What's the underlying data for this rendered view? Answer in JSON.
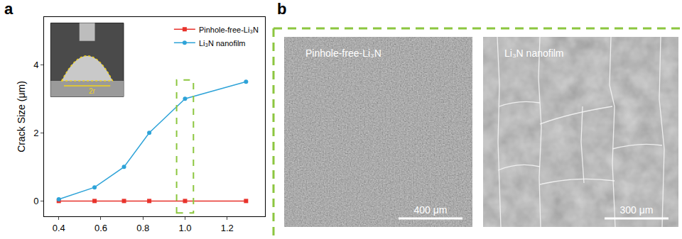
{
  "chart_data": {
    "type": "line",
    "panel_label": "a",
    "y_label": "Crack Size (μm)",
    "x": [
      0.4,
      0.57,
      0.71,
      0.83,
      1.0,
      1.29
    ],
    "series": [
      {
        "name": "Pinhole-free-Li₃N",
        "color": "#e8322b",
        "marker": "square",
        "values": [
          0,
          0,
          0,
          0,
          0,
          0
        ]
      },
      {
        "name": "Li₃N nanofilm",
        "color": "#2ea3d8",
        "marker": "circle",
        "values": [
          0.05,
          0.4,
          1.0,
          2.0,
          3.0,
          3.5
        ]
      }
    ],
    "xlim": [
      0.33,
      1.38
    ],
    "xticks": [
      0.4,
      0.6,
      0.8,
      {
        "value": 1,
        "label": "1.0"
      },
      1.2
    ],
    "ylim": [
      -0.45,
      5.4
    ],
    "yticks": [
      0,
      2,
      4
    ],
    "grid": false,
    "legend": "upper right",
    "highlight_x": 1.0,
    "inset_label": "2r"
  },
  "panel_b": {
    "label": "b",
    "images": [
      {
        "title": "Pinhole-free-Li₃N",
        "scale_bar": "400 μm"
      },
      {
        "title": "Li₃N nanofilm",
        "scale_bar": "300 μm"
      }
    ]
  }
}
